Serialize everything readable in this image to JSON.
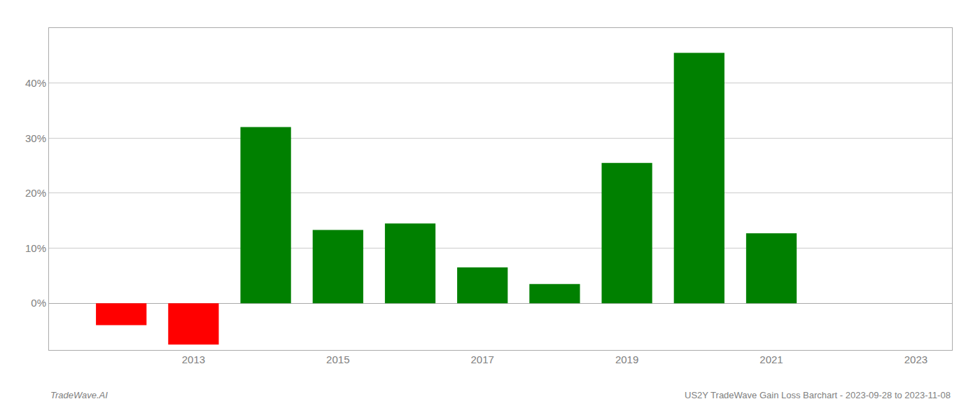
{
  "chart_data": {
    "type": "bar",
    "x": [
      2012,
      2013,
      2014,
      2015,
      2016,
      2017,
      2018,
      2019,
      2020,
      2021,
      2022
    ],
    "values": [
      -0.04,
      -0.075,
      0.32,
      0.133,
      0.145,
      0.065,
      0.035,
      0.255,
      0.455,
      0.127,
      0.0
    ],
    "colors": [
      "#ff0000",
      "#ff0000",
      "#008000",
      "#008000",
      "#008000",
      "#008000",
      "#008000",
      "#008000",
      "#008000",
      "#008000",
      "#008000"
    ],
    "xlim": [
      2011.0,
      2023.5
    ],
    "ylim": [
      -0.085,
      0.5
    ],
    "xticks": [
      2013,
      2015,
      2017,
      2019,
      2021,
      2023
    ],
    "yticks": [
      {
        "value": 0.0,
        "label": "0%"
      },
      {
        "value": 0.1,
        "label": "10%"
      },
      {
        "value": 0.2,
        "label": "20%"
      },
      {
        "value": 0.3,
        "label": "30%"
      },
      {
        "value": 0.4,
        "label": "40%"
      }
    ],
    "grid": true,
    "annotations": [
      "TradeWave.AI",
      "US2Y TradeWave Gain Loss Barchart - 2023-09-28 to 2023-11-08"
    ]
  }
}
